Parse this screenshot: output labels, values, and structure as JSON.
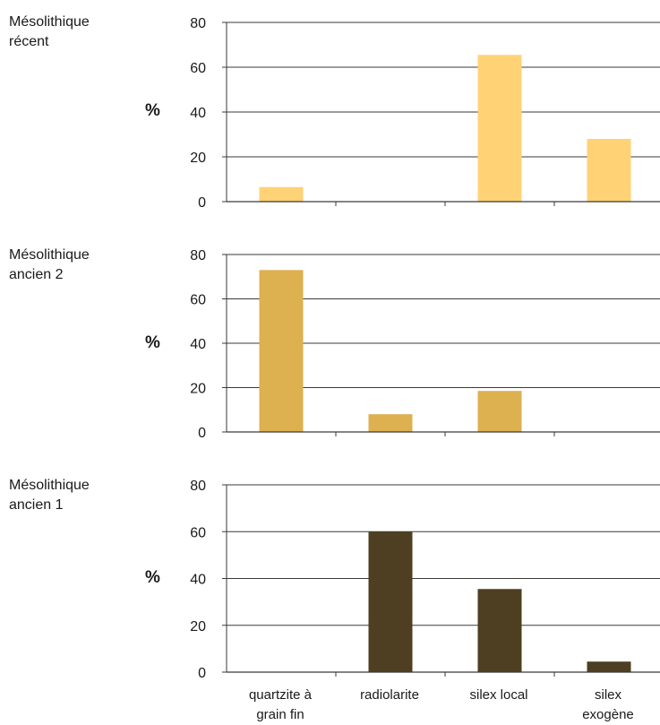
{
  "chart_data": [
    {
      "type": "bar",
      "title": "Mésolithique\nrécent",
      "ylabel": "%",
      "categories": [
        "quartzite à\ngrain fin",
        "radiolarite",
        "silex local",
        "silex\nexogène"
      ],
      "values": [
        6.5,
        0,
        65.5,
        28
      ],
      "ylim": [
        0,
        80
      ],
      "yticks": [
        0,
        20,
        40,
        60,
        80
      ],
      "grid": true,
      "color": "#FFD275"
    },
    {
      "type": "bar",
      "title": "Mésolithique\nancien 2",
      "ylabel": "%",
      "categories": [
        "quartzite à\ngrain fin",
        "radiolarite",
        "silex local",
        "silex\nexogène"
      ],
      "values": [
        73,
        8,
        18.5,
        0
      ],
      "ylim": [
        0,
        80
      ],
      "yticks": [
        0,
        20,
        40,
        60,
        80
      ],
      "grid": true,
      "color": "#DDB050"
    },
    {
      "type": "bar",
      "title": "Mésolithique\nancien 1",
      "ylabel": "%",
      "categories": [
        "quartzite à\ngrain fin",
        "radiolarite",
        "silex local",
        "silex\nexogène"
      ],
      "values": [
        0,
        60,
        35.5,
        4.5
      ],
      "ylim": [
        0,
        80
      ],
      "yticks": [
        0,
        20,
        40,
        60,
        80
      ],
      "grid": true,
      "color": "#4E3F22"
    }
  ]
}
